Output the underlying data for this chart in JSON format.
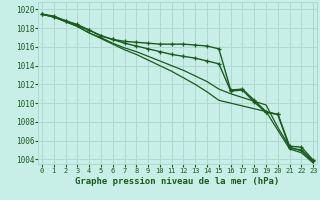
{
  "title": "Graphe pression niveau de la mer (hPa)",
  "bg_color": "#c8eee8",
  "grid_color": "#b0d8d0",
  "line_color": "#1a5c1a",
  "ylim": [
    1003.5,
    1020.8
  ],
  "yticks": [
    1004,
    1006,
    1008,
    1010,
    1012,
    1014,
    1016,
    1018,
    1020
  ],
  "xlim": [
    -0.3,
    23.3
  ],
  "xticks": [
    0,
    1,
    2,
    3,
    4,
    5,
    6,
    7,
    8,
    9,
    10,
    11,
    12,
    13,
    14,
    15,
    16,
    17,
    18,
    19,
    20,
    21,
    22,
    23
  ],
  "series": [
    {
      "y": [
        1019.5,
        1019.3,
        1018.8,
        1018.4,
        1017.8,
        1017.2,
        1016.8,
        1016.6,
        1016.5,
        1016.4,
        1016.3,
        1016.3,
        1016.3,
        1016.2,
        1016.1,
        1015.8,
        1011.4,
        1011.5,
        1010.3,
        1009.1,
        1008.8,
        1005.2,
        1005.0,
        1003.8
      ],
      "markers": true,
      "lw": 1.0
    },
    {
      "y": [
        1019.5,
        1019.2,
        1018.7,
        1018.2,
        1017.5,
        1017.0,
        1016.4,
        1015.9,
        1015.5,
        1015.0,
        1014.5,
        1014.0,
        1013.5,
        1012.9,
        1012.3,
        1011.5,
        1011.0,
        1010.6,
        1010.2,
        1009.8,
        1007.4,
        1005.3,
        1004.9,
        1003.7
      ],
      "markers": false,
      "lw": 0.9
    },
    {
      "y": [
        1019.5,
        1019.2,
        1018.7,
        1018.2,
        1017.5,
        1016.9,
        1016.3,
        1015.7,
        1015.2,
        1014.6,
        1014.0,
        1013.4,
        1012.7,
        1012.0,
        1011.2,
        1010.3,
        1010.0,
        1009.7,
        1009.4,
        1009.1,
        1007.1,
        1005.1,
        1004.7,
        1003.6
      ],
      "markers": false,
      "lw": 0.9
    },
    {
      "y": [
        1019.5,
        1019.2,
        1018.8,
        1018.3,
        1017.8,
        1017.2,
        1016.8,
        1016.4,
        1016.1,
        1015.8,
        1015.5,
        1015.2,
        1015.0,
        1014.8,
        1014.5,
        1014.2,
        1011.3,
        1011.4,
        1010.1,
        1009.0,
        1008.8,
        1005.4,
        1005.3,
        1003.9
      ],
      "markers": true,
      "lw": 1.0
    }
  ]
}
